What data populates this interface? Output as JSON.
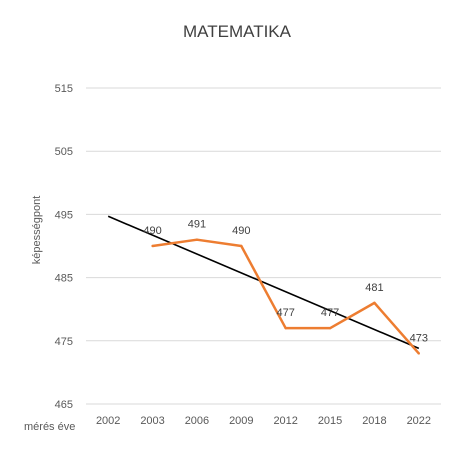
{
  "chart_data": {
    "type": "line",
    "title": "MATEMATIKA",
    "xlabel": "mérés éve",
    "ylabel": "képességpont",
    "categories": [
      "2002",
      "2003",
      "2006",
      "2009",
      "2012",
      "2015",
      "2018",
      "2022"
    ],
    "ylim": [
      465,
      515
    ],
    "yticks": [
      465,
      475,
      485,
      495,
      505,
      515
    ],
    "grid": true,
    "series": [
      {
        "values": [
          null,
          490,
          491,
          490,
          477,
          477,
          481,
          473
        ],
        "data_labels": [
          "",
          "490",
          "491",
          "490",
          "477",
          "477",
          "481",
          "473"
        ],
        "color": "#ED7D31"
      }
    ],
    "trendline": {
      "type": "linear",
      "start": {
        "x": "2002",
        "y": 494.7
      },
      "end": {
        "x": "2022",
        "y": 473.8
      },
      "color": "#000000"
    }
  }
}
